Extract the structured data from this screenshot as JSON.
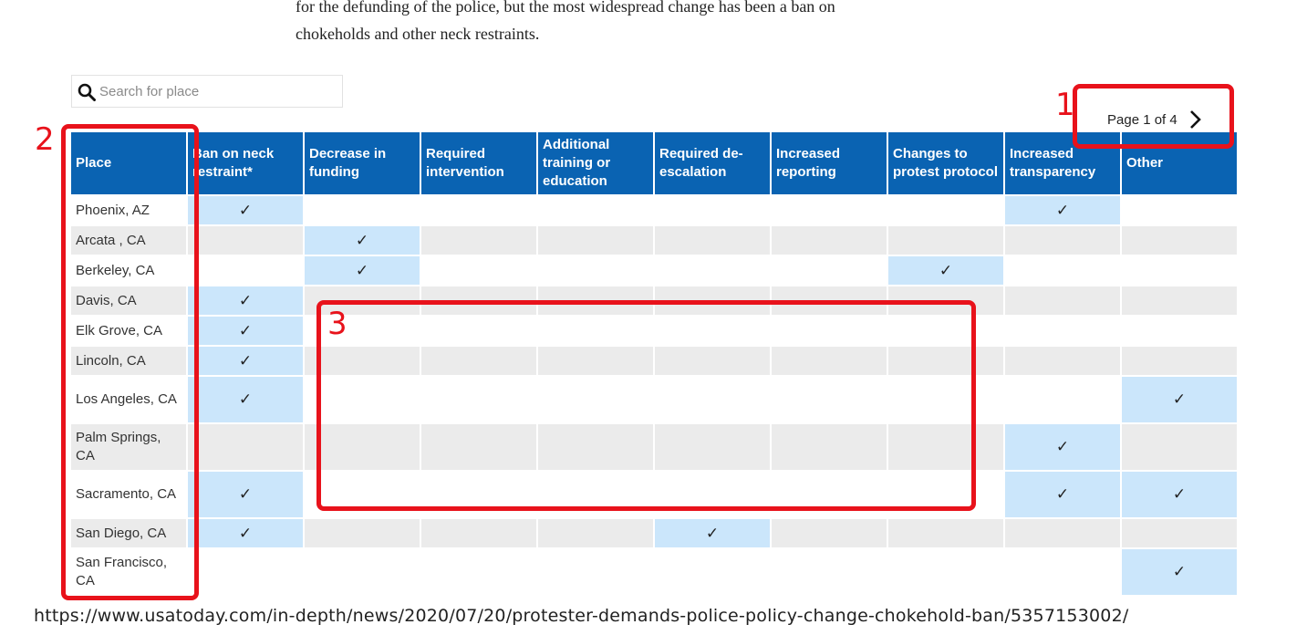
{
  "intro": {
    "line1": "for the defunding of the police, but the most widespread change has been a ban on",
    "line2": "chokeholds and other neck restraints."
  },
  "search": {
    "placeholder": "Search for place",
    "icon": "search-icon"
  },
  "pager": {
    "label": "Page 1 of 4",
    "next_icon": "chevron-right-icon"
  },
  "table": {
    "columns": [
      "Place",
      "Ban on neck restraint*",
      "Decrease in funding",
      "Required intervention",
      "Additional training or education",
      "Required de-escalation",
      "Increased reporting",
      "Changes to protest protocol",
      "Increased transparency",
      "Other"
    ],
    "check_symbol": "✓",
    "rows": [
      {
        "place": "Phoenix, AZ",
        "checks": [
          1,
          0,
          0,
          0,
          0,
          0,
          0,
          1,
          0
        ]
      },
      {
        "place": "Arcata , CA",
        "checks": [
          0,
          1,
          0,
          0,
          0,
          0,
          0,
          0,
          0
        ]
      },
      {
        "place": "Berkeley, CA",
        "checks": [
          0,
          1,
          0,
          0,
          0,
          0,
          1,
          0,
          0
        ]
      },
      {
        "place": "Davis, CA",
        "checks": [
          1,
          0,
          0,
          0,
          0,
          0,
          0,
          0,
          0
        ]
      },
      {
        "place": "Elk Grove, CA",
        "checks": [
          1,
          0,
          0,
          0,
          0,
          0,
          0,
          0,
          0
        ]
      },
      {
        "place": "Lincoln, CA",
        "checks": [
          1,
          0,
          0,
          0,
          0,
          0,
          0,
          0,
          0
        ]
      },
      {
        "place": "Los Angeles, CA",
        "checks": [
          1,
          0,
          0,
          0,
          0,
          0,
          0,
          0,
          1
        ]
      },
      {
        "place": "Palm Springs, CA",
        "checks": [
          0,
          0,
          0,
          0,
          0,
          0,
          0,
          1,
          0
        ]
      },
      {
        "place": "Sacramento, CA",
        "checks": [
          1,
          0,
          0,
          0,
          0,
          0,
          0,
          1,
          1
        ]
      },
      {
        "place": "San Diego, CA",
        "checks": [
          1,
          0,
          0,
          0,
          1,
          0,
          0,
          0,
          0
        ]
      },
      {
        "place": "San Francisco, CA",
        "checks": [
          0,
          0,
          0,
          0,
          0,
          0,
          0,
          0,
          1
        ]
      }
    ]
  },
  "source_url": "https://www.usatoday.com/in-depth/news/2020/07/20/protester-demands-police-policy-change-chokehold-ban/5357153002/",
  "annotations": [
    {
      "number": "1"
    },
    {
      "number": "2"
    },
    {
      "number": "3"
    }
  ],
  "colors": {
    "header": "#0a63b2",
    "highlight": "#cbe6fb",
    "stripe": "#ebebeb",
    "annotation": "#e8121b"
  }
}
